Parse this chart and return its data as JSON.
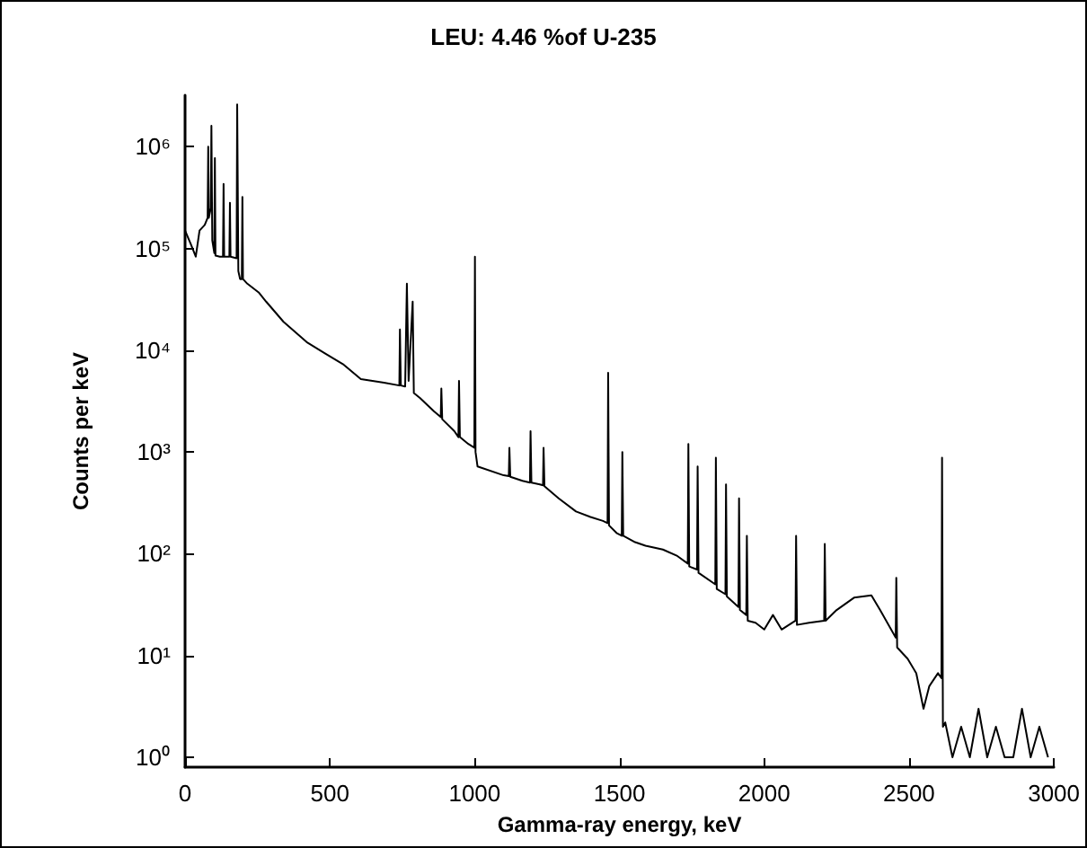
{
  "chart_data": {
    "type": "line",
    "title": "LEU: 4.46 %of U-235",
    "xlabel": "Gamma-ray energy, keV",
    "ylabel": "Counts per keV",
    "log": "y",
    "grid": false,
    "marker": "none",
    "line_style": "solid",
    "xlim": [
      0,
      3000
    ],
    "xticks": [
      0,
      500,
      1000,
      1500,
      2000,
      2500,
      3000
    ],
    "ylim": [
      0.8,
      3200000
    ],
    "yticks": [
      {
        "value": 1,
        "label": "10⁰"
      },
      {
        "value": 10,
        "label": "10¹"
      },
      {
        "value": 100,
        "label": "10²"
      },
      {
        "value": 1000,
        "label": "10³"
      },
      {
        "value": 10000,
        "label": "10⁴"
      },
      {
        "value": 100000,
        "label": "10⁵"
      },
      {
        "value": 1000000,
        "label": "10⁶"
      }
    ],
    "series": [
      {
        "color": "#000000",
        "x": [
          0,
          20,
          37,
          50,
          68,
          78,
          80,
          82,
          89,
          91,
          94,
          101,
          103,
          105,
          120,
          131,
          133,
          135,
          153,
          155,
          157,
          178,
          180,
          184,
          190,
          196,
          198,
          200,
          215,
          254,
          280,
          340,
          420,
          483,
          545,
          607,
          687,
          740,
          742,
          745,
          760,
          766,
          772,
          786,
          790,
          811,
          860,
          883,
          885,
          888,
          930,
          944,
          946,
          949,
          978,
          999,
          1001,
          1003,
          1010,
          1100,
          1118,
          1120,
          1123,
          1165,
          1191,
          1193,
          1196,
          1225,
          1236,
          1238,
          1241,
          1290,
          1350,
          1400,
          1443,
          1459,
          1461,
          1464,
          1490,
          1508,
          1510,
          1513,
          1554,
          1590,
          1650,
          1700,
          1736,
          1738,
          1741,
          1768,
          1770,
          1773,
          1831,
          1833,
          1836,
          1866,
          1868,
          1871,
          1911,
          1913,
          1916,
          1938,
          1940,
          1943,
          1970,
          2000,
          2030,
          2060,
          2108,
          2110,
          2113,
          2155,
          2207,
          2209,
          2212,
          2250,
          2310,
          2370,
          2400,
          2454,
          2456,
          2459,
          2495,
          2525,
          2550,
          2570,
          2600,
          2612,
          2614,
          2617,
          2625,
          2650,
          2680,
          2710,
          2740,
          2770,
          2800,
          2830,
          2860,
          2890,
          2920,
          2950,
          2980
        ],
        "values": [
          150000,
          110000,
          83000,
          150000,
          170000,
          200000,
          1000000,
          200000,
          250000,
          1600000,
          120000,
          90000,
          770000,
          85000,
          83000,
          83000,
          430000,
          83000,
          83000,
          280000,
          83000,
          80000,
          2600000,
          60000,
          50000,
          50000,
          320000,
          50000,
          45000,
          37000,
          30000,
          19000,
          12000,
          9300,
          7300,
          5200,
          4800,
          4500,
          16000,
          4500,
          4400,
          45000,
          5000,
          30000,
          3800,
          3400,
          2500,
          2200,
          4200,
          2100,
          1600,
          1400,
          5000,
          1400,
          1200,
          1100,
          83000,
          1000,
          720,
          590,
          580,
          1100,
          570,
          520,
          500,
          1600,
          500,
          480,
          470,
          1100,
          460,
          350,
          260,
          230,
          210,
          200,
          6000,
          190,
          160,
          150,
          1000,
          150,
          130,
          120,
          110,
          95,
          80,
          1200,
          75,
          70,
          720,
          65,
          50,
          880,
          45,
          40,
          480,
          38,
          30,
          350,
          28,
          25,
          150,
          22,
          21,
          18,
          25,
          18,
          22,
          150,
          20,
          21,
          22,
          125,
          22,
          28,
          37,
          39,
          28,
          15,
          58,
          12,
          9.3,
          6.7,
          3,
          5,
          6.7,
          6,
          880,
          2,
          2.2,
          1,
          2,
          1,
          3,
          1,
          2,
          1,
          1,
          3,
          1,
          2,
          1
        ]
      }
    ]
  }
}
